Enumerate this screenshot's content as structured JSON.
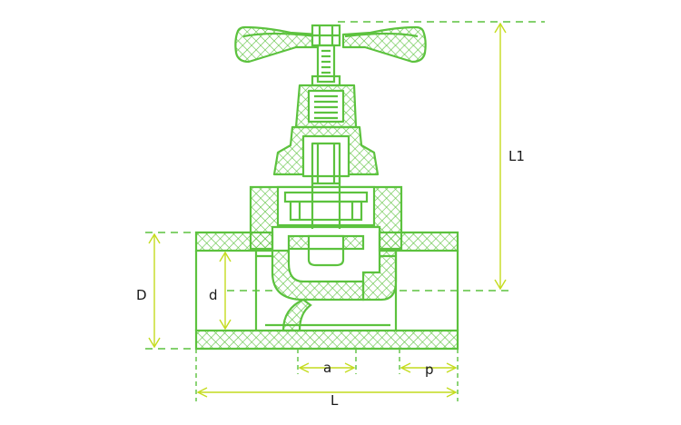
{
  "diagram": {
    "kind": "valve-cross-section",
    "colors": {
      "outline": "#5cc23e",
      "hatch": "#5cc23e",
      "dimension": "#c4dc1e",
      "text": "#1a1a1a",
      "background": "#ffffff"
    },
    "labels": {
      "L1": "L1",
      "D": "D",
      "d": "d",
      "a": "a",
      "p": "p",
      "L": "L"
    }
  }
}
